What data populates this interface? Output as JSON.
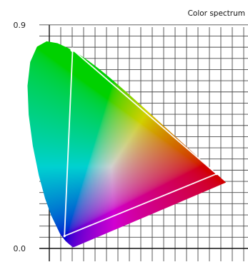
{
  "chart_data": {
    "type": "scatter",
    "title": "Color spectrum",
    "xlabel": "",
    "ylabel": "",
    "ylim": [
      0.0,
      0.9
    ],
    "y_ticks": [
      {
        "value": 0.0,
        "label": "0.0"
      },
      {
        "value": 0.9,
        "label": "0.9"
      }
    ],
    "grid": true,
    "spectral_locus": {
      "x": [
        0.1741,
        0.1738,
        0.1733,
        0.1726,
        0.1714,
        0.1689,
        0.1644,
        0.1566,
        0.144,
        0.1241,
        0.0913,
        0.0687,
        0.0454,
        0.0235,
        0.0082,
        0.0039,
        0.0139,
        0.0389,
        0.0743,
        0.1142,
        0.1547,
        0.1929,
        0.2296,
        0.2658,
        0.3016,
        0.3373,
        0.3731,
        0.4087,
        0.4441,
        0.4788,
        0.5125,
        0.5448,
        0.5752,
        0.6029,
        0.627,
        0.6482,
        0.6658,
        0.6801,
        0.6915,
        0.7006,
        0.7079,
        0.714,
        0.719,
        0.723,
        0.726,
        0.7283,
        0.73,
        0.7347
      ],
      "y": [
        0.005,
        0.0049,
        0.0048,
        0.0048,
        0.0051,
        0.0069,
        0.0109,
        0.0177,
        0.0297,
        0.0578,
        0.1327,
        0.2007,
        0.295,
        0.4127,
        0.5384,
        0.6548,
        0.7502,
        0.812,
        0.8338,
        0.8262,
        0.8059,
        0.7816,
        0.7543,
        0.7243,
        0.6923,
        0.6589,
        0.6245,
        0.5896,
        0.5547,
        0.5202,
        0.4866,
        0.4544,
        0.4242,
        0.3965,
        0.3725,
        0.3514,
        0.334,
        0.3197,
        0.3083,
        0.2993,
        0.292,
        0.2859,
        0.2809,
        0.277,
        0.274,
        0.2717,
        0.27,
        0.2653
      ]
    },
    "gamut_triangle": [
      {
        "x": 0.7,
        "y": 0.3
      },
      {
        "x": 0.17,
        "y": 0.8
      },
      {
        "x": 0.14,
        "y": 0.05
      }
    ],
    "white_point": {
      "x": 0.17,
      "y": 0.8
    }
  }
}
